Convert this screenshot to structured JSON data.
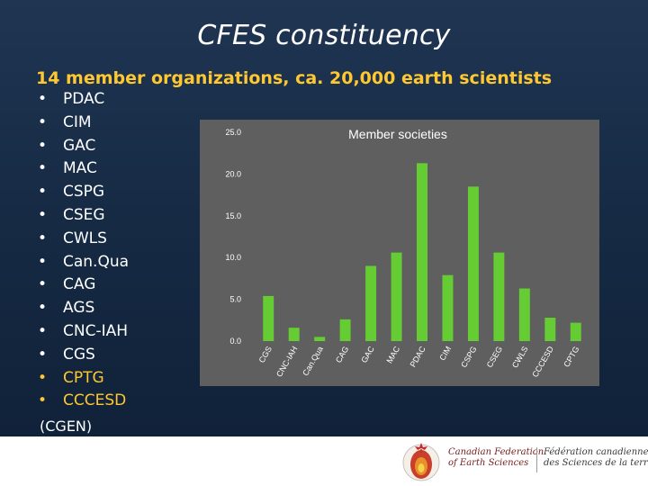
{
  "slide": {
    "title": "CFES constituency",
    "subtitle": "14 member organizations, ca. 20,000 earth scientists",
    "bullet": "•",
    "organizations": [
      {
        "name": "PDAC",
        "highlight": false
      },
      {
        "name": "CIM",
        "highlight": false
      },
      {
        "name": "GAC",
        "highlight": false
      },
      {
        "name": "MAC",
        "highlight": false
      },
      {
        "name": "CSPG",
        "highlight": false
      },
      {
        "name": "CSEG",
        "highlight": false
      },
      {
        "name": "CWLS",
        "highlight": false
      },
      {
        "name": "Can.Qua",
        "highlight": false
      },
      {
        "name": "CAG",
        "highlight": false
      },
      {
        "name": "AGS",
        "highlight": false
      },
      {
        "name": "CNC-IAH",
        "highlight": false
      },
      {
        "name": "CGS",
        "highlight": false
      },
      {
        "name": "CPTG",
        "highlight": true
      },
      {
        "name": "CCCESD",
        "highlight": true
      }
    ],
    "note": "(CGEN)",
    "colors": {
      "title": "#ffffff",
      "subtitle": "#ffc830",
      "highlight": "#ffc830",
      "bar": "#66cc33",
      "panel": "#5f5f5f"
    }
  },
  "chart_data": {
    "type": "bar",
    "title": "Member societies",
    "ylabel": "%",
    "xlabel": "",
    "ylim": [
      0,
      25
    ],
    "yticks": [
      "0.0",
      "5.0",
      "10.0",
      "15.0",
      "20.0",
      "25.0"
    ],
    "grid": false,
    "categories": [
      "CGS",
      "CNC-IAH",
      "Can.Qua",
      "CAG",
      "GAC",
      "MAC",
      "PDAC",
      "CIM",
      "CSPG",
      "CSEG",
      "CWLS",
      "CCCESD",
      "CPTG"
    ],
    "values": [
      5.4,
      1.6,
      0.5,
      2.6,
      9.0,
      10.6,
      21.3,
      7.9,
      18.5,
      10.6,
      6.3,
      2.8,
      2.2
    ],
    "bar_color": "#66cc33"
  },
  "footer": {
    "logo_icon": "cfes-maple-globe-icon",
    "name_en": [
      "Canadian Federation",
      "of Earth Sciences"
    ],
    "name_fr": [
      "Fédération canadienne",
      "des Sciences de la terre"
    ]
  }
}
